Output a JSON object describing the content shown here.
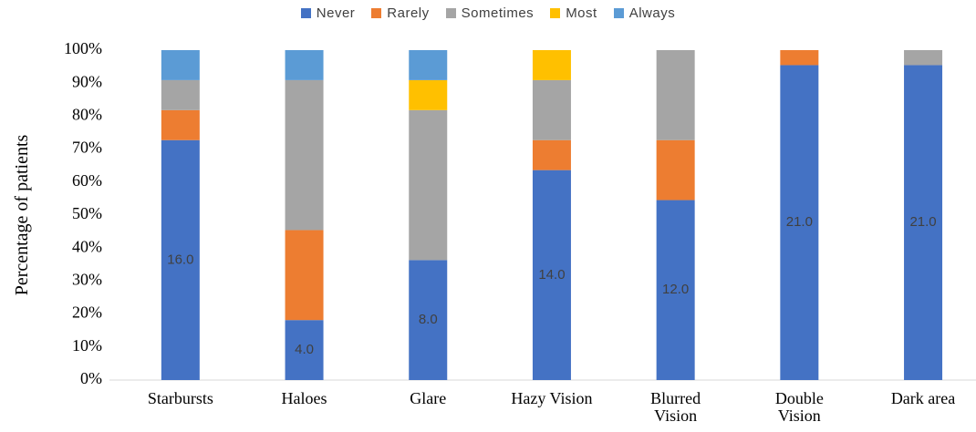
{
  "chart_data": {
    "type": "bar",
    "stacking": "percent",
    "y_label": "Percentage of patients",
    "categories": [
      "Starbursts",
      "Haloes",
      "Glare",
      "Hazy Vision",
      "Blurred Vision",
      "Double Vision",
      "Dark area"
    ],
    "series": [
      {
        "name": "Never",
        "color": "#4472c4",
        "values": [
          16,
          4,
          8,
          14,
          12,
          21,
          21
        ],
        "value_labels": [
          "16.0",
          "4.0",
          "8.0",
          "14.0",
          "12.0",
          "21.0",
          "21.0"
        ]
      },
      {
        "name": "Rarely",
        "color": "#ed7d31",
        "values": [
          2,
          6,
          0,
          2,
          4,
          1,
          0
        ]
      },
      {
        "name": "Sometimes",
        "color": "#a5a5a5",
        "values": [
          2,
          10,
          10,
          4,
          6,
          0,
          1
        ]
      },
      {
        "name": "Most",
        "color": "#ffc000",
        "values": [
          0,
          0,
          2,
          2,
          0,
          0,
          0
        ]
      },
      {
        "name": "Always",
        "color": "#5b9bd5",
        "values": [
          2,
          2,
          2,
          0,
          0,
          0,
          0
        ]
      }
    ],
    "ylim": [
      0,
      100
    ],
    "yticks": [
      {
        "value": 0,
        "label": "0%"
      },
      {
        "value": 10,
        "label": "10%"
      },
      {
        "value": 20,
        "label": "20%"
      },
      {
        "value": 30,
        "label": "30%"
      },
      {
        "value": 40,
        "label": "40%"
      },
      {
        "value": 50,
        "label": "50%"
      },
      {
        "value": 60,
        "label": "60%"
      },
      {
        "value": 70,
        "label": "70%"
      },
      {
        "value": 80,
        "label": "80%"
      },
      {
        "value": 90,
        "label": "90%"
      },
      {
        "value": 100,
        "label": "100%"
      }
    ],
    "legend": "top",
    "grid": false
  }
}
